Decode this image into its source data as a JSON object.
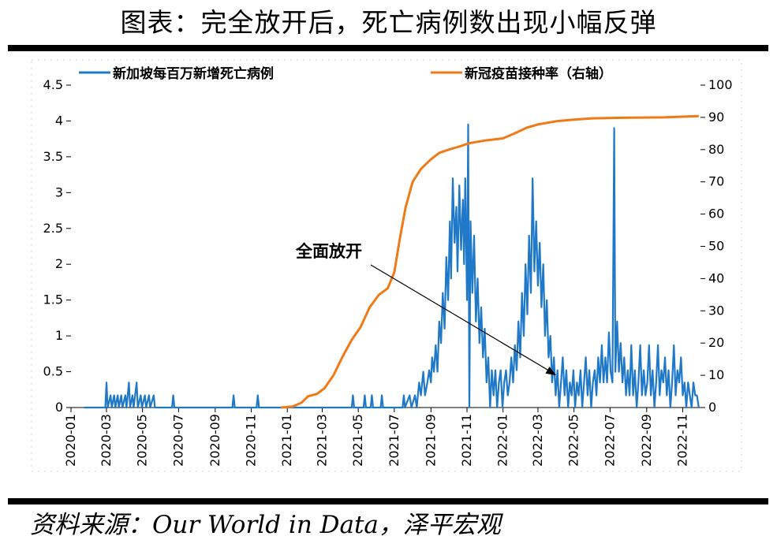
{
  "title": "图表：完全放开后，死亡病例数出现小幅反弹",
  "source": "资料来源：Our World in Data，泽平宏观",
  "colors": {
    "deaths": "#1f78c8",
    "vaccination": "#f07a16"
  },
  "chart_data": {
    "type": "line",
    "x_ticks": [
      "2020-01",
      "2020-03",
      "2020-05",
      "2020-07",
      "2020-09",
      "2020-11",
      "2021-01",
      "2021-03",
      "2021-05",
      "2021-07",
      "2021-09",
      "2021-11",
      "2022-01",
      "2022-03",
      "2022-05",
      "2022-07",
      "2022-09",
      "2022-11"
    ],
    "y_left": {
      "range": [
        0,
        4.5
      ],
      "ticks": [
        "0",
        "0.5",
        "1",
        "1.5",
        "2",
        "2.5",
        "3",
        "3.5",
        "4",
        "4.5"
      ]
    },
    "y_right": {
      "range": [
        0,
        100
      ],
      "ticks": [
        "0",
        "10",
        "20",
        "30",
        "40",
        "50",
        "60",
        "70",
        "80",
        "90",
        "100"
      ]
    },
    "legend_position": "top",
    "series": [
      {
        "name": "新加坡每百万新增死亡病例",
        "axis": "left",
        "color": "#1f78c8",
        "points": [
          [
            "2020-01-23",
            0
          ],
          [
            "2020-02-28",
            0
          ],
          [
            "2020-03-01",
            0.35
          ],
          [
            "2020-03-03",
            0
          ],
          [
            "2020-03-08",
            0.17
          ],
          [
            "2020-03-10",
            0
          ],
          [
            "2020-03-14",
            0.17
          ],
          [
            "2020-03-16",
            0
          ],
          [
            "2020-03-20",
            0.17
          ],
          [
            "2020-03-22",
            0
          ],
          [
            "2020-03-26",
            0.17
          ],
          [
            "2020-03-28",
            0
          ],
          [
            "2020-04-02",
            0.17
          ],
          [
            "2020-04-04",
            0
          ],
          [
            "2020-04-08",
            0.35
          ],
          [
            "2020-04-10",
            0
          ],
          [
            "2020-04-14",
            0.17
          ],
          [
            "2020-04-16",
            0
          ],
          [
            "2020-04-21",
            0.35
          ],
          [
            "2020-04-23",
            0
          ],
          [
            "2020-04-28",
            0.17
          ],
          [
            "2020-04-30",
            0
          ],
          [
            "2020-05-05",
            0.17
          ],
          [
            "2020-05-07",
            0
          ],
          [
            "2020-05-12",
            0.17
          ],
          [
            "2020-05-14",
            0
          ],
          [
            "2020-05-20",
            0.17
          ],
          [
            "2020-05-22",
            0
          ],
          [
            "2020-06-20",
            0
          ],
          [
            "2020-06-22",
            0.17
          ],
          [
            "2020-06-24",
            0
          ],
          [
            "2020-09-30",
            0
          ],
          [
            "2020-10-02",
            0.17
          ],
          [
            "2020-10-04",
            0
          ],
          [
            "2020-11-10",
            0
          ],
          [
            "2020-11-12",
            0.17
          ],
          [
            "2020-11-14",
            0
          ],
          [
            "2021-04-20",
            0
          ],
          [
            "2021-04-22",
            0.17
          ],
          [
            "2021-04-24",
            0
          ],
          [
            "2021-05-10",
            0
          ],
          [
            "2021-05-12",
            0.17
          ],
          [
            "2021-05-14",
            0
          ],
          [
            "2021-05-22",
            0
          ],
          [
            "2021-05-24",
            0.17
          ],
          [
            "2021-05-26",
            0
          ],
          [
            "2021-06-08",
            0
          ],
          [
            "2021-06-10",
            0.17
          ],
          [
            "2021-06-12",
            0
          ],
          [
            "2021-07-15",
            0
          ],
          [
            "2021-07-17",
            0.17
          ],
          [
            "2021-07-19",
            0
          ],
          [
            "2021-07-27",
            0.17
          ],
          [
            "2021-07-30",
            0
          ],
          [
            "2021-08-05",
            0.17
          ],
          [
            "2021-08-08",
            0
          ],
          [
            "2021-08-12",
            0.35
          ],
          [
            "2021-08-15",
            0.17
          ],
          [
            "2021-08-19",
            0.5
          ],
          [
            "2021-08-22",
            0.17
          ],
          [
            "2021-08-26",
            0.35
          ],
          [
            "2021-08-29",
            0.52
          ],
          [
            "2021-09-01",
            0.35
          ],
          [
            "2021-09-03",
            0.7
          ],
          [
            "2021-09-06",
            0.5
          ],
          [
            "2021-09-09",
            0.87
          ],
          [
            "2021-09-12",
            0.5
          ],
          [
            "2021-09-15",
            1.2
          ],
          [
            "2021-09-18",
            0.9
          ],
          [
            "2021-09-21",
            1.6
          ],
          [
            "2021-09-24",
            1.1
          ],
          [
            "2021-09-27",
            2.1
          ],
          [
            "2021-09-30",
            1.5
          ],
          [
            "2021-10-03",
            2.6
          ],
          [
            "2021-10-05",
            1.8
          ],
          [
            "2021-10-08",
            3.2
          ],
          [
            "2021-10-11",
            2.3
          ],
          [
            "2021-10-14",
            2.8
          ],
          [
            "2021-10-16",
            1.9
          ],
          [
            "2021-10-19",
            3.1
          ],
          [
            "2021-10-22",
            2.2
          ],
          [
            "2021-10-25",
            2.9
          ],
          [
            "2021-10-27",
            2.0
          ],
          [
            "2021-10-29",
            3.2
          ],
          [
            "2021-11-01",
            1.5
          ],
          [
            "2021-11-03",
            3.95
          ],
          [
            "2021-11-05",
            0
          ],
          [
            "2021-11-07",
            2.6
          ],
          [
            "2021-11-10",
            1.6
          ],
          [
            "2021-11-13",
            2.4
          ],
          [
            "2021-11-16",
            1.2
          ],
          [
            "2021-11-19",
            1.8
          ],
          [
            "2021-11-22",
            0.9
          ],
          [
            "2021-11-25",
            1.4
          ],
          [
            "2021-11-28",
            0.7
          ],
          [
            "2021-12-01",
            1.1
          ],
          [
            "2021-12-04",
            0.35
          ],
          [
            "2021-12-07",
            0.7
          ],
          [
            "2021-12-10",
            0
          ],
          [
            "2021-12-13",
            0.52
          ],
          [
            "2021-12-16",
            0.17
          ],
          [
            "2021-12-19",
            0.52
          ],
          [
            "2021-12-22",
            0
          ],
          [
            "2021-12-25",
            0.35
          ],
          [
            "2021-12-28",
            0.52
          ],
          [
            "2021-12-31",
            0
          ],
          [
            "2022-01-03",
            0.35
          ],
          [
            "2022-01-06",
            0.52
          ],
          [
            "2022-01-09",
            0.17
          ],
          [
            "2022-01-12",
            0.35
          ],
          [
            "2022-01-15",
            0.7
          ],
          [
            "2022-01-18",
            0.35
          ],
          [
            "2022-01-21",
            0.87
          ],
          [
            "2022-01-24",
            0.52
          ],
          [
            "2022-01-27",
            1.2
          ],
          [
            "2022-01-30",
            0.7
          ],
          [
            "2022-02-02",
            1.6
          ],
          [
            "2022-02-05",
            1.0
          ],
          [
            "2022-02-08",
            2.0
          ],
          [
            "2022-02-11",
            1.3
          ],
          [
            "2022-02-14",
            2.4
          ],
          [
            "2022-02-17",
            1.6
          ],
          [
            "2022-02-20",
            3.2
          ],
          [
            "2022-02-23",
            1.9
          ],
          [
            "2022-02-26",
            2.6
          ],
          [
            "2022-03-01",
            1.7
          ],
          [
            "2022-03-04",
            2.3
          ],
          [
            "2022-03-07",
            1.4
          ],
          [
            "2022-03-10",
            2.0
          ],
          [
            "2022-03-13",
            1.0
          ],
          [
            "2022-03-16",
            1.5
          ],
          [
            "2022-03-19",
            0.7
          ],
          [
            "2022-03-22",
            1.0
          ],
          [
            "2022-03-25",
            0.35
          ],
          [
            "2022-03-28",
            0.7
          ],
          [
            "2022-03-31",
            0.17
          ],
          [
            "2022-04-03",
            0.52
          ],
          [
            "2022-04-06",
            0
          ],
          [
            "2022-04-09",
            0.35
          ],
          [
            "2022-04-12",
            0.7
          ],
          [
            "2022-04-15",
            0.17
          ],
          [
            "2022-04-18",
            0.52
          ],
          [
            "2022-04-21",
            0
          ],
          [
            "2022-04-24",
            0.35
          ],
          [
            "2022-04-27",
            0.17
          ],
          [
            "2022-04-30",
            0.52
          ],
          [
            "2022-05-03",
            0
          ],
          [
            "2022-05-06",
            0.35
          ],
          [
            "2022-05-09",
            0.17
          ],
          [
            "2022-05-12",
            0.52
          ],
          [
            "2022-05-15",
            0
          ],
          [
            "2022-05-18",
            0.35
          ],
          [
            "2022-05-21",
            0.7
          ],
          [
            "2022-05-24",
            0.17
          ],
          [
            "2022-05-27",
            0.52
          ],
          [
            "2022-05-30",
            0
          ],
          [
            "2022-06-02",
            0.35
          ],
          [
            "2022-06-05",
            0.52
          ],
          [
            "2022-06-08",
            0.17
          ],
          [
            "2022-06-11",
            0.7
          ],
          [
            "2022-06-14",
            0.35
          ],
          [
            "2022-06-17",
            0.87
          ],
          [
            "2022-06-20",
            0.35
          ],
          [
            "2022-06-23",
            0.7
          ],
          [
            "2022-06-26",
            0.35
          ],
          [
            "2022-06-29",
            1.05
          ],
          [
            "2022-07-02",
            0.5
          ],
          [
            "2022-07-05",
            0.35
          ],
          [
            "2022-07-08",
            3.9
          ],
          [
            "2022-07-10",
            0.5
          ],
          [
            "2022-07-13",
            1.2
          ],
          [
            "2022-07-16",
            0.5
          ],
          [
            "2022-07-19",
            0.9
          ],
          [
            "2022-07-22",
            0.35
          ],
          [
            "2022-07-25",
            0.7
          ],
          [
            "2022-07-28",
            0.17
          ],
          [
            "2022-07-31",
            0.52
          ],
          [
            "2022-08-03",
            0.17
          ],
          [
            "2022-08-06",
            0.87
          ],
          [
            "2022-08-09",
            0.17
          ],
          [
            "2022-08-12",
            0.52
          ],
          [
            "2022-08-15",
            0
          ],
          [
            "2022-08-18",
            0.35
          ],
          [
            "2022-08-21",
            0.87
          ],
          [
            "2022-08-24",
            0.17
          ],
          [
            "2022-08-27",
            0.52
          ],
          [
            "2022-08-30",
            0.17
          ],
          [
            "2022-09-02",
            0.35
          ],
          [
            "2022-09-05",
            0.87
          ],
          [
            "2022-09-08",
            0.17
          ],
          [
            "2022-09-11",
            0.52
          ],
          [
            "2022-09-14",
            0
          ],
          [
            "2022-09-17",
            0.35
          ],
          [
            "2022-09-20",
            0.87
          ],
          [
            "2022-09-23",
            0.17
          ],
          [
            "2022-09-26",
            0.52
          ],
          [
            "2022-09-29",
            0.35
          ],
          [
            "2022-10-02",
            0.7
          ],
          [
            "2022-10-05",
            0.17
          ],
          [
            "2022-10-08",
            0.52
          ],
          [
            "2022-10-11",
            0
          ],
          [
            "2022-10-14",
            0.35
          ],
          [
            "2022-10-17",
            0.87
          ],
          [
            "2022-10-20",
            0.17
          ],
          [
            "2022-10-23",
            0.52
          ],
          [
            "2022-10-26",
            0.35
          ],
          [
            "2022-10-29",
            0.7
          ],
          [
            "2022-11-01",
            0.17
          ],
          [
            "2022-11-04",
            0.35
          ],
          [
            "2022-11-07",
            0
          ],
          [
            "2022-11-10",
            0.35
          ],
          [
            "2022-11-13",
            0.17
          ],
          [
            "2022-11-16",
            0
          ],
          [
            "2022-11-19",
            0.35
          ],
          [
            "2022-11-22",
            0.17
          ],
          [
            "2022-11-25",
            0.17
          ],
          [
            "2022-11-28",
            0
          ]
        ]
      },
      {
        "name": "新冠疫苗接种率（右轴）",
        "axis": "right",
        "color": "#f07a16",
        "points": [
          [
            "2020-12-21",
            0
          ],
          [
            "2021-01-10",
            0.3
          ],
          [
            "2021-01-25",
            1.5
          ],
          [
            "2021-02-05",
            3.5
          ],
          [
            "2021-02-20",
            4.2
          ],
          [
            "2021-03-05",
            6
          ],
          [
            "2021-03-20",
            10
          ],
          [
            "2021-04-05",
            16
          ],
          [
            "2021-04-20",
            21
          ],
          [
            "2021-05-05",
            25
          ],
          [
            "2021-05-20",
            31
          ],
          [
            "2021-06-05",
            35
          ],
          [
            "2021-06-20",
            37
          ],
          [
            "2021-07-01",
            42
          ],
          [
            "2021-07-10",
            52
          ],
          [
            "2021-07-20",
            62
          ],
          [
            "2021-08-01",
            70
          ],
          [
            "2021-08-15",
            74
          ],
          [
            "2021-09-01",
            77
          ],
          [
            "2021-09-15",
            79
          ],
          [
            "2021-10-01",
            80
          ],
          [
            "2021-10-20",
            81
          ],
          [
            "2021-11-05",
            82
          ],
          [
            "2021-12-01",
            82.8
          ],
          [
            "2022-01-01",
            83.5
          ],
          [
            "2022-01-20",
            85
          ],
          [
            "2022-02-10",
            86.8
          ],
          [
            "2022-03-01",
            87.8
          ],
          [
            "2022-04-01",
            88.8
          ],
          [
            "2022-05-01",
            89.3
          ],
          [
            "2022-06-01",
            89.7
          ],
          [
            "2022-08-01",
            89.9
          ],
          [
            "2022-10-01",
            90.0
          ],
          [
            "2022-11-28",
            90.4
          ]
        ]
      }
    ],
    "annotations": [
      {
        "text": "全面放开",
        "target_date": "2022-04-01",
        "target_value": 0.45
      }
    ]
  }
}
